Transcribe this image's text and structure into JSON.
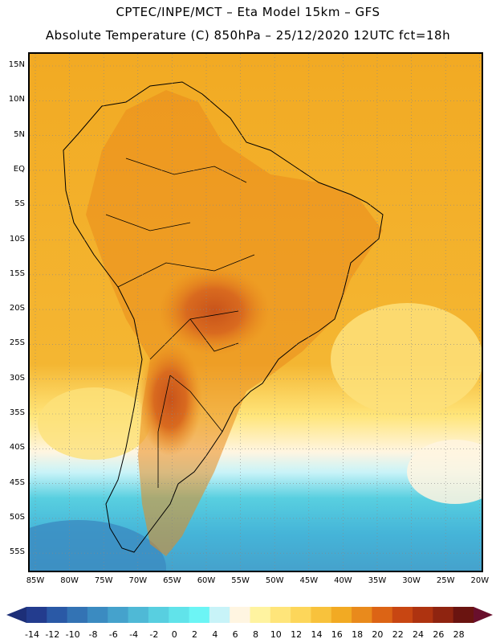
{
  "header": {
    "line1": "CPTEC/INPE/MCT –  Eta Model 15km – GFS",
    "line2": "Absolute Temperature (C) 850hPa – 25/12/2020 12UTC fct=18h"
  },
  "map": {
    "lat_labels": [
      "15N",
      "10N",
      "5N",
      "EQ",
      "5S",
      "10S",
      "15S",
      "20S",
      "25S",
      "30S",
      "35S",
      "40S",
      "45S",
      "50S",
      "55S"
    ],
    "lon_labels": [
      "85W",
      "80W",
      "75W",
      "70W",
      "65W",
      "60W",
      "55W",
      "50W",
      "45W",
      "40W",
      "35W",
      "30W",
      "25W",
      "20W"
    ]
  },
  "colorbar": {
    "labels": [
      "-14",
      "-12",
      "-10",
      "-8",
      "-6",
      "-4",
      "-2",
      "0",
      "2",
      "4",
      "6",
      "8",
      "10",
      "12",
      "14",
      "16",
      "18",
      "20",
      "22",
      "24",
      "26",
      "28"
    ],
    "colors": [
      "#233c8e",
      "#2a59a6",
      "#3373b4",
      "#3b8bc1",
      "#45a2cc",
      "#4fb9d6",
      "#58cfe0",
      "#61e3ea",
      "#6cf5f5",
      "#c8f3f8",
      "#fff5e1",
      "#fff3a0",
      "#ffe57a",
      "#fdd65a",
      "#f8c23c",
      "#f2aa23",
      "#e98a1c",
      "#dc6415",
      "#c84612",
      "#ae3310",
      "#8f2410",
      "#6a1410"
    ],
    "under_color": "#1d2f78",
    "over_color": "#690f2c"
  }
}
